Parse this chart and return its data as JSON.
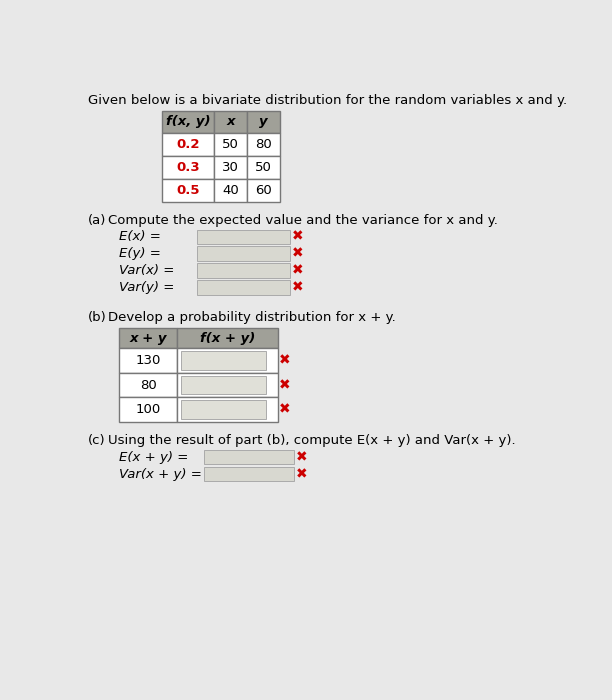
{
  "title": "Given below is a bivariate distribution for the random variables x and y.",
  "title_fontsize": 9.5,
  "background_color": "#e8e8e8",
  "table1": {
    "headers": [
      "f(x, y)",
      "x",
      "y"
    ],
    "rows": [
      [
        "0.2",
        "50",
        "80"
      ],
      [
        "0.3",
        "30",
        "50"
      ],
      [
        "0.5",
        "40",
        "60"
      ]
    ],
    "fxy_color": "#cc0000",
    "header_bg": "#a0a0a0",
    "cell_bg": "#ffffff",
    "border_color": "#777777"
  },
  "part_a": {
    "label": "(a)",
    "text": "Compute the expected value and the variance for x and y.",
    "equations": [
      "E(x) =",
      "E(y) =",
      "Var(x) =",
      "Var(y) ="
    ]
  },
  "part_b": {
    "label": "(b)",
    "text": "Develop a probability distribution for x + y.",
    "headers": [
      "x + y",
      "f(x + y)"
    ],
    "rows": [
      "130",
      "80",
      "100"
    ]
  },
  "part_c": {
    "label": "(c)",
    "text": "Using the result of part (b), compute E(x + y) and Var(x + y).",
    "equations": [
      "E(x + y) =",
      "Var(x + y) ="
    ]
  },
  "input_box_color": "#d8d8d0",
  "input_box_color2": "#e0e0d8",
  "x_mark_color": "#cc0000",
  "x_mark": "✖"
}
